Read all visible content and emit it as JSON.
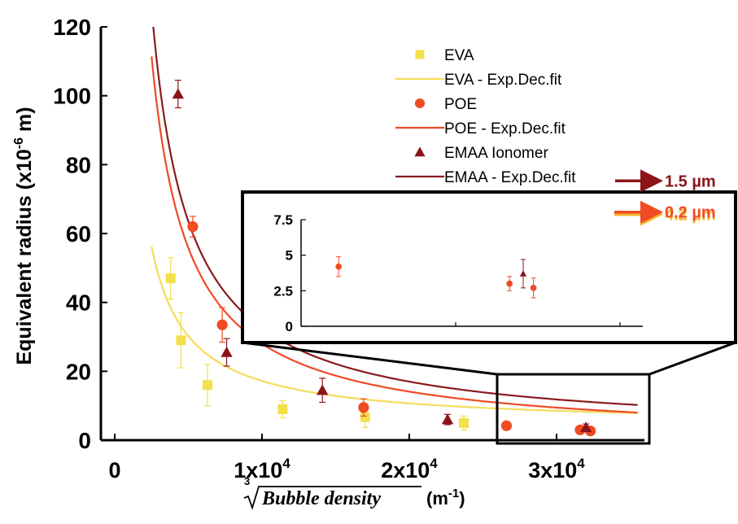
{
  "chart_data": {
    "type": "scatter",
    "xlabel_root_index": "3",
    "xlabel_radicand": "Bubble density",
    "xlabel_unit": "(m",
    "xlabel_unit_exp": "-1",
    "xlabel_unit_close": ")",
    "ylabel": "Equivalent radius (x10",
    "ylabel_exp": "-6",
    "ylabel_unit": " m)",
    "xlim": [
      0,
      35000
    ],
    "ylim": [
      0,
      120
    ],
    "x_ticks": [
      {
        "value": 0,
        "label": "0",
        "exp": ""
      },
      {
        "value": 10000,
        "label": "1x10",
        "exp": "4"
      },
      {
        "value": 20000,
        "label": "2x10",
        "exp": "4"
      },
      {
        "value": 30000,
        "label": "3x10",
        "exp": "4"
      }
    ],
    "y_ticks": [
      0,
      20,
      40,
      60,
      80,
      100,
      120
    ],
    "series": [
      {
        "name": "EVA",
        "fit_name": "EVA - Exp.Dec.fit",
        "color": "#f2e04a",
        "fit_color": "#f5dc5a",
        "marker": "square",
        "points": [
          {
            "x": 3800,
            "y": 47,
            "err": 6
          },
          {
            "x": 4500,
            "y": 29,
            "err": 8
          },
          {
            "x": 6300,
            "y": 16,
            "err": 6
          },
          {
            "x": 11400,
            "y": 9,
            "err": 2.5
          },
          {
            "x": 17000,
            "y": 6.7,
            "err": 3
          },
          {
            "x": 23700,
            "y": 5,
            "err": 2
          }
        ],
        "fit": {
          "A": 130000,
          "asymptote": 4.2
        }
      },
      {
        "name": "POE",
        "fit_name": "POE - Exp.Dec.fit",
        "color": "#f04b23",
        "fit_color": "#ee4a26",
        "marker": "circle",
        "points": [
          {
            "x": 5300,
            "y": 62,
            "err": 3
          },
          {
            "x": 7300,
            "y": 33.5,
            "err": 5
          },
          {
            "x": 16900,
            "y": 9.5,
            "err": 2.5
          },
          {
            "x": 26600,
            "y": 4.2,
            "err": 0.7
          },
          {
            "x": 31600,
            "y": 3,
            "err": 0.5
          },
          {
            "x": 32300,
            "y": 2.7,
            "err": 0.7
          }
        ],
        "fit": {
          "A": 278000,
          "asymptote": 0.2
        }
      },
      {
        "name": "EMAA Ionomer",
        "fit_name": "EMAA - Exp.Dec.fit",
        "color": "#8b1419",
        "fit_color": "#8a1a1e",
        "marker": "triangle",
        "points": [
          {
            "x": 4300,
            "y": 100.5,
            "err": 4
          },
          {
            "x": 7600,
            "y": 25.5,
            "err": 4
          },
          {
            "x": 14100,
            "y": 14.5,
            "err": 3.5
          },
          {
            "x": 22600,
            "y": 6,
            "err": 1.5
          },
          {
            "x": 32000,
            "y": 3.7,
            "err": 1
          }
        ],
        "fit": {
          "A": 310000,
          "asymptote": 1.5
        }
      }
    ],
    "inset": {
      "y_ticks": [
        {
          "value": 0,
          "label": "0"
        },
        {
          "value": 2.5,
          "label": "2.5"
        },
        {
          "value": 5,
          "label": "5"
        },
        {
          "value": 7.5,
          "label": "7.5"
        }
      ],
      "xlim": [
        25500,
        35500
      ],
      "ylim": [
        0,
        7.5
      ],
      "end_labels": [
        {
          "series": "EVA",
          "text": "4.2 µm",
          "color": "#f5b52a"
        },
        {
          "series": "EMAA Ionomer",
          "text": "1.5 µm",
          "color": "#8b1419"
        },
        {
          "series": "POE",
          "text": "0.2 µm",
          "color": "#f04b23"
        }
      ]
    }
  }
}
